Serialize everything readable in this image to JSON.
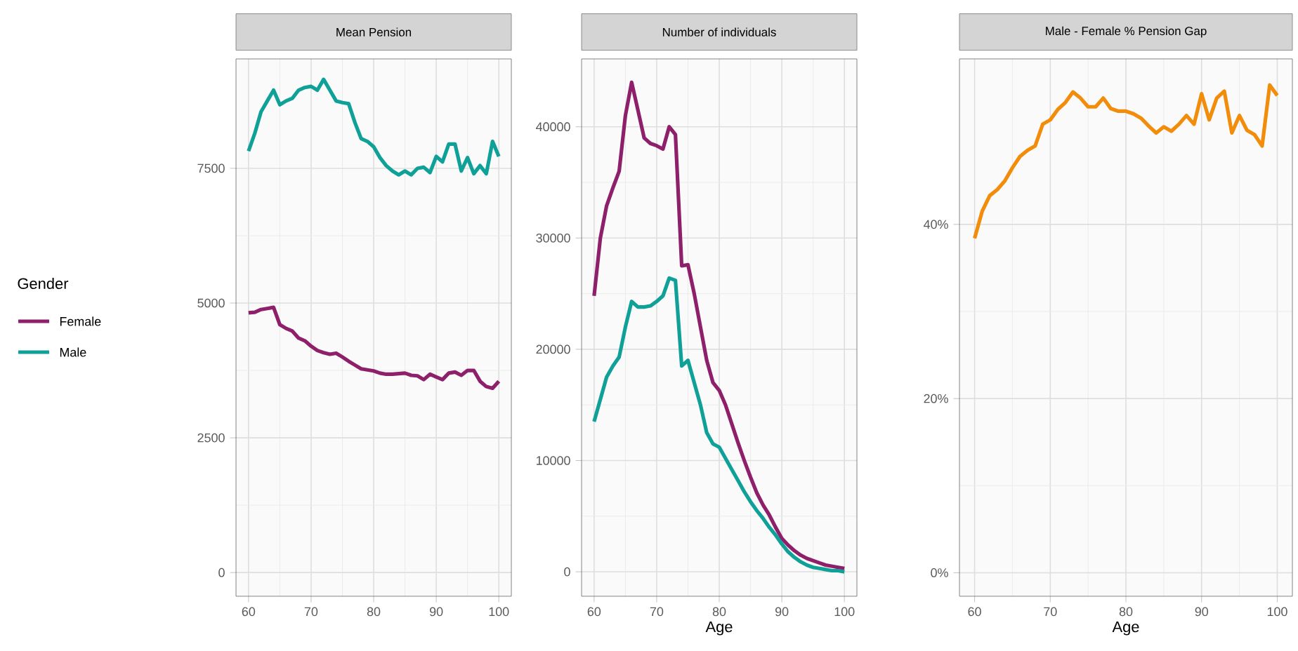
{
  "chart_data": [
    {
      "type": "line",
      "title": "Mean Pension",
      "legend_title": "Gender",
      "legend": "left",
      "grid": true,
      "xlim": [
        58,
        102
      ],
      "ylim": [
        -440,
        9530
      ],
      "xticks": [
        60,
        70,
        80,
        90,
        100
      ],
      "yticks": [
        0,
        2500,
        5000,
        7500
      ],
      "x": [
        60,
        61,
        62,
        63,
        64,
        65,
        66,
        67,
        68,
        69,
        70,
        71,
        72,
        73,
        74,
        75,
        76,
        77,
        78,
        79,
        80,
        81,
        82,
        83,
        84,
        85,
        86,
        87,
        88,
        89,
        90,
        91,
        92,
        93,
        94,
        95,
        96,
        97,
        98,
        99,
        100
      ],
      "series": [
        {
          "name": "Female",
          "color": "#8e1f6a",
          "values": [
            4820,
            4830,
            4880,
            4900,
            4920,
            4600,
            4530,
            4480,
            4350,
            4300,
            4200,
            4120,
            4080,
            4050,
            4070,
            4000,
            3920,
            3850,
            3780,
            3760,
            3740,
            3700,
            3680,
            3680,
            3690,
            3700,
            3660,
            3650,
            3580,
            3680,
            3630,
            3580,
            3700,
            3720,
            3660,
            3750,
            3750,
            3550,
            3450,
            3420,
            3550
          ]
        },
        {
          "name": "Male",
          "color": "#0fa197",
          "values": [
            7820,
            8150,
            8550,
            8750,
            8950,
            8680,
            8750,
            8800,
            8950,
            9000,
            9020,
            8950,
            9150,
            8950,
            8750,
            8720,
            8700,
            8350,
            8050,
            8000,
            7900,
            7700,
            7550,
            7450,
            7380,
            7450,
            7380,
            7500,
            7520,
            7420,
            7720,
            7620,
            7950,
            7950,
            7450,
            7700,
            7400,
            7550,
            7400,
            8000,
            7720
          ]
        }
      ]
    },
    {
      "type": "line",
      "title": "Number of individuals",
      "xlabel": "Age",
      "grid": true,
      "xlim": [
        58,
        102
      ],
      "ylim": [
        -2200,
        46100
      ],
      "xticks": [
        60,
        70,
        80,
        90,
        100
      ],
      "yticks": [
        0,
        10000,
        20000,
        30000,
        40000
      ],
      "x": [
        60,
        61,
        62,
        63,
        64,
        65,
        66,
        67,
        68,
        69,
        70,
        71,
        72,
        73,
        74,
        75,
        76,
        77,
        78,
        79,
        80,
        81,
        82,
        83,
        84,
        85,
        86,
        87,
        88,
        89,
        90,
        91,
        92,
        93,
        94,
        95,
        96,
        97,
        98,
        99,
        100
      ],
      "series": [
        {
          "color": "#8e1f6a",
          "values": [
            24800,
            30000,
            32900,
            34500,
            36000,
            41000,
            44000,
            41500,
            39000,
            38500,
            38300,
            38000,
            40000,
            39300,
            27500,
            27600,
            25000,
            22000,
            19000,
            17000,
            16300,
            15000,
            13300,
            11600,
            10000,
            8500,
            7100,
            6000,
            5100,
            4000,
            3000,
            2400,
            1900,
            1500,
            1200,
            1000,
            800,
            600,
            500,
            400,
            300
          ]
        },
        {
          "color": "#0fa197",
          "values": [
            13500,
            15500,
            17500,
            18500,
            19300,
            22000,
            24300,
            23800,
            23800,
            23900,
            24300,
            24800,
            26400,
            26200,
            18500,
            19000,
            17000,
            15000,
            12500,
            11500,
            11200,
            10200,
            9200,
            8200,
            7200,
            6300,
            5500,
            4800,
            4000,
            3300,
            2500,
            1800,
            1300,
            900,
            600,
            400,
            300,
            200,
            100,
            100,
            0
          ]
        }
      ]
    },
    {
      "type": "line",
      "title": "Male - Female % Pension Gap",
      "xlabel": "Age",
      "grid": true,
      "xlim": [
        58,
        102
      ],
      "ylim": [
        -2.7,
        59
      ],
      "xticks": [
        60,
        70,
        80,
        90,
        100
      ],
      "yticks": [
        {
          "value": 0,
          "label": "0%"
        },
        {
          "value": 20,
          "label": "20%"
        },
        {
          "value": 40,
          "label": "40%"
        }
      ],
      "x": [
        60,
        61,
        62,
        63,
        64,
        65,
        66,
        67,
        68,
        69,
        70,
        71,
        72,
        73,
        74,
        75,
        76,
        77,
        78,
        79,
        80,
        81,
        82,
        83,
        84,
        85,
        86,
        87,
        88,
        89,
        90,
        91,
        92,
        93,
        94,
        95,
        96,
        97,
        98,
        99,
        100
      ],
      "series": [
        {
          "color": "#f28c0b",
          "values": [
            38.4,
            41.5,
            43.3,
            44,
            45,
            46.5,
            47.8,
            48.5,
            49,
            51.5,
            52,
            53.2,
            54,
            55.2,
            54.5,
            53.5,
            53.5,
            54.5,
            53.3,
            53,
            53,
            52.7,
            52.2,
            51.3,
            50.5,
            51.2,
            50.7,
            51.5,
            52.5,
            51.5,
            55,
            52,
            54.5,
            55.3,
            50.5,
            52.5,
            50.8,
            50.3,
            49,
            56,
            54.8
          ]
        }
      ]
    }
  ]
}
